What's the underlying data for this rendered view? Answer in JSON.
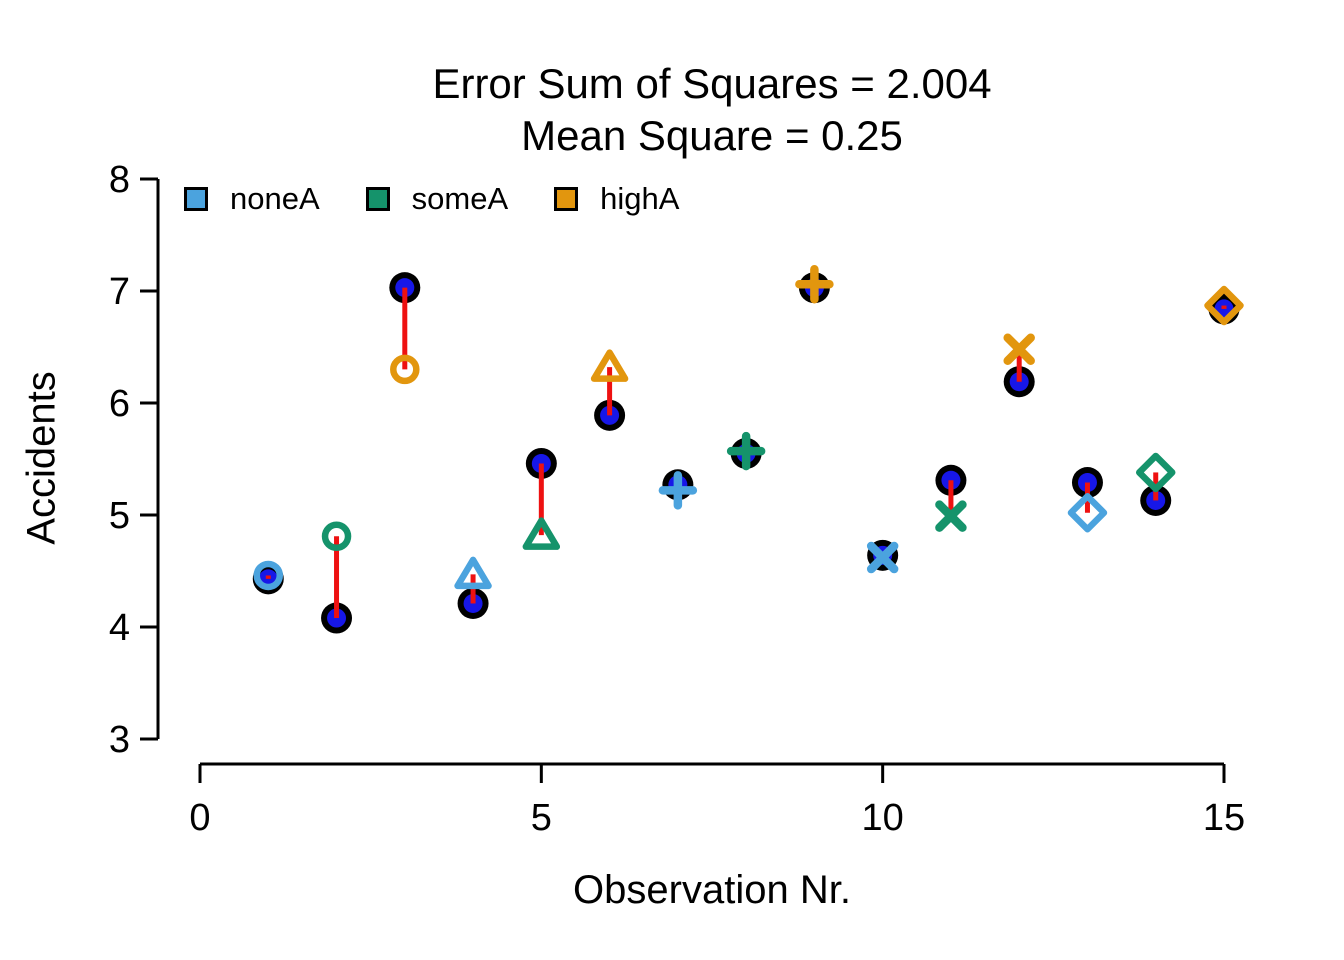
{
  "figure": {
    "title_line1": "Error Sum of Squares = 2.004",
    "title_line2": "Mean Square = 0.25",
    "y_label": "Accidents",
    "x_label": "Observation Nr."
  },
  "legend": {
    "position": "top-left-inside",
    "items": [
      {
        "label": "noneA",
        "color": "#4BA3DE"
      },
      {
        "label": "someA",
        "color": "#15936B"
      },
      {
        "label": "highA",
        "color": "#E2960E"
      }
    ]
  },
  "chart_data": {
    "type": "scatter",
    "title": "Error Sum of Squares = 2.004\nMean Square = 0.25",
    "xlabel": "Observation Nr.",
    "ylabel": "Accidents",
    "xlim": [
      0,
      15
    ],
    "ylim": [
      3,
      8
    ],
    "x_ticks": [
      "0",
      "5",
      "10",
      "15"
    ],
    "x_tick_values": [
      0,
      5,
      10,
      15
    ],
    "y_ticks": [
      "3",
      "4",
      "5",
      "6",
      "7",
      "8"
    ],
    "y_tick_values": [
      3,
      4,
      5,
      6,
      7,
      8
    ],
    "grid": false,
    "legend_position": "top-left inside plot",
    "error_sum_of_squares": 2.004,
    "mean_square": 0.25,
    "groups": [
      {
        "name": "noneA",
        "color": "#4BA3DE"
      },
      {
        "name": "someA",
        "color": "#15936B"
      },
      {
        "name": "highA",
        "color": "#E2960E"
      }
    ],
    "marker_colors": {
      "fitted_outer": "#000000",
      "fitted_inner": "#1717E8",
      "residual_line": "#EE1111"
    },
    "points": [
      {
        "obs": 1,
        "group": "noneA",
        "symbol": "circle",
        "observed": 4.46,
        "fitted": 4.43
      },
      {
        "obs": 2,
        "group": "someA",
        "symbol": "circle",
        "observed": 4.81,
        "fitted": 4.08
      },
      {
        "obs": 3,
        "group": "highA",
        "symbol": "circle",
        "observed": 6.3,
        "fitted": 7.03
      },
      {
        "obs": 4,
        "group": "noneA",
        "symbol": "triangle",
        "observed": 4.47,
        "fitted": 4.21
      },
      {
        "obs": 5,
        "group": "someA",
        "symbol": "triangle",
        "observed": 4.82,
        "fitted": 5.46
      },
      {
        "obs": 6,
        "group": "highA",
        "symbol": "triangle",
        "observed": 6.32,
        "fitted": 5.89
      },
      {
        "obs": 7,
        "group": "noneA",
        "symbol": "plus",
        "observed": 5.22,
        "fitted": 5.27
      },
      {
        "obs": 8,
        "group": "someA",
        "symbol": "plus",
        "observed": 5.57,
        "fitted": 5.55
      },
      {
        "obs": 9,
        "group": "highA",
        "symbol": "plus",
        "observed": 7.06,
        "fitted": 7.03
      },
      {
        "obs": 10,
        "group": "noneA",
        "symbol": "x",
        "observed": 4.62,
        "fitted": 4.64
      },
      {
        "obs": 11,
        "group": "someA",
        "symbol": "x",
        "observed": 4.99,
        "fitted": 5.31
      },
      {
        "obs": 12,
        "group": "highA",
        "symbol": "x",
        "observed": 6.48,
        "fitted": 6.19
      },
      {
        "obs": 13,
        "group": "noneA",
        "symbol": "diamond",
        "observed": 5.02,
        "fitted": 5.29
      },
      {
        "obs": 14,
        "group": "someA",
        "symbol": "diamond",
        "observed": 5.38,
        "fitted": 5.13
      },
      {
        "obs": 15,
        "group": "highA",
        "symbol": "diamond",
        "observed": 6.87,
        "fitted": 6.84
      }
    ]
  }
}
